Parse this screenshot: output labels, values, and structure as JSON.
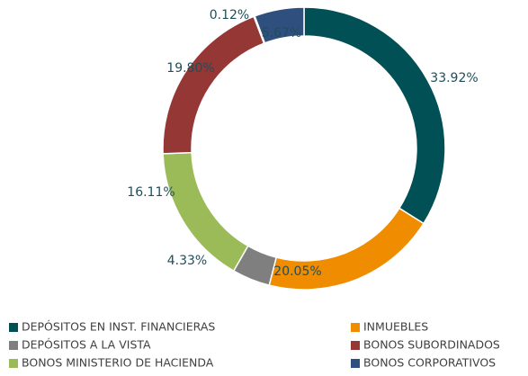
{
  "chart_data": {
    "type": "pie",
    "donut": true,
    "categories": [
      "DEPÓSITOS EN INST. FINANCIERAS",
      "INMUEBLES",
      "DEPÓSITOS A LA VISTA",
      "BONOS MINISTERIO DE HACIENDA",
      "BONOS SUBORDINADOS",
      null,
      "BONOS CORPORATIVOS"
    ],
    "values": [
      33.92,
      20.05,
      4.33,
      16.11,
      19.8,
      0.12,
      5.67
    ],
    "value_labels": [
      "33.92%",
      "20.05%",
      "4.33%",
      "16.11%",
      "19.80%",
      "0.12%",
      "5.67%"
    ],
    "colors": [
      "#005055",
      "#ef8c00",
      "#7f7f7f",
      "#9bbb59",
      "#953735",
      "#a5a5a5",
      "#2f4f7f"
    ],
    "legend": "bottom"
  }
}
